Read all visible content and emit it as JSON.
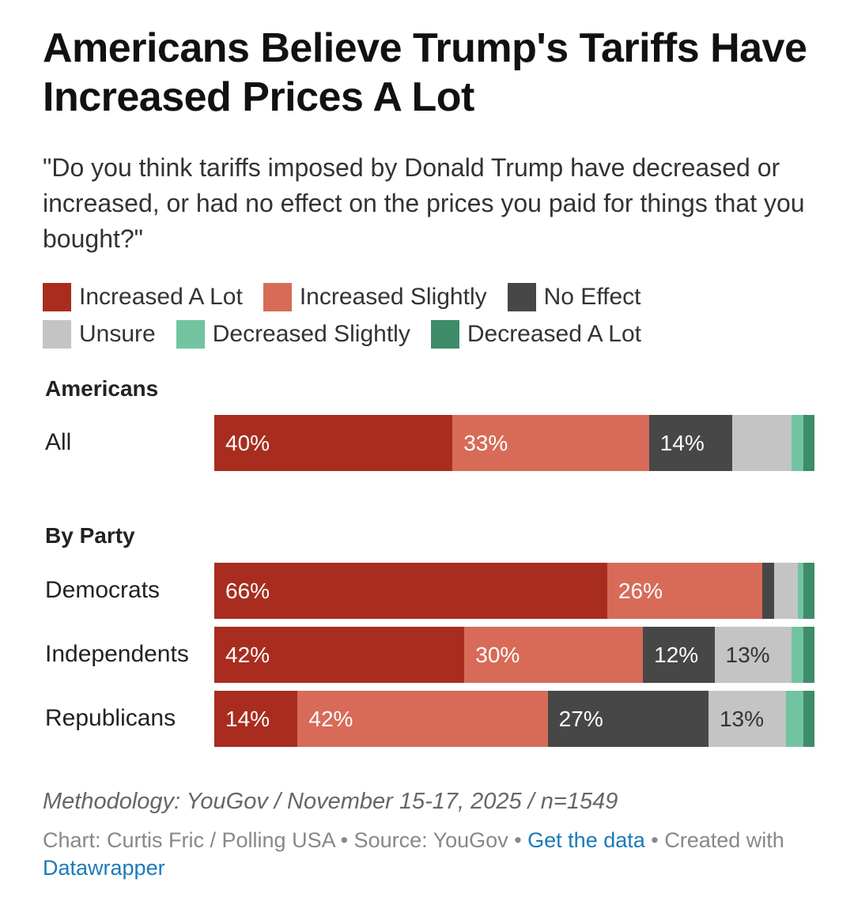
{
  "title": "Americans Believe Trump's Tariffs Have Increased Prices A Lot",
  "subtitle": "\"Do you think tariffs imposed by Donald Trump have decreased or increased, or had no effect on the prices you paid for things that you bought?\"",
  "legend": [
    {
      "label": "Increased A Lot",
      "color": "#a82d1e"
    },
    {
      "label": "Increased Slightly",
      "color": "#d76b58"
    },
    {
      "label": "No Effect",
      "color": "#474747"
    },
    {
      "label": "Unsure",
      "color": "#c4c4c4"
    },
    {
      "label": "Decreased Slightly",
      "color": "#72c4a1"
    },
    {
      "label": "Decreased A Lot",
      "color": "#3e8c69"
    }
  ],
  "sections": {
    "americans": "Americans",
    "by_party": "By Party"
  },
  "chart_data": {
    "type": "bar",
    "orientation": "horizontal-stacked-100",
    "title": "Americans Believe Trump's Tariffs Have Increased Prices A Lot",
    "categories": [
      "All",
      "Democrats",
      "Independents",
      "Republicans"
    ],
    "groups": [
      {
        "name": "Americans",
        "rows": [
          "All"
        ]
      },
      {
        "name": "By Party",
        "rows": [
          "Democrats",
          "Independents",
          "Republicans"
        ]
      }
    ],
    "series": [
      {
        "name": "Increased A Lot",
        "color": "#a82d1e",
        "values": [
          40,
          66,
          42,
          14
        ]
      },
      {
        "name": "Increased Slightly",
        "color": "#d76b58",
        "values": [
          33,
          26,
          30,
          42
        ]
      },
      {
        "name": "No Effect",
        "color": "#474747",
        "values": [
          14,
          2,
          12,
          27
        ]
      },
      {
        "name": "Unsure",
        "color": "#c4c4c4",
        "values": [
          10,
          4,
          13,
          13
        ]
      },
      {
        "name": "Decreased Slightly",
        "color": "#72c4a1",
        "values": [
          2,
          1,
          2,
          3
        ]
      },
      {
        "name": "Decreased A Lot",
        "color": "#3e8c69",
        "values": [
          1,
          1,
          1,
          1
        ]
      }
    ],
    "shown_labels": [
      [
        "40%",
        "33%",
        "14%",
        "",
        "",
        ""
      ],
      [
        "66%",
        "26%",
        "",
        "",
        "",
        ""
      ],
      [
        "42%",
        "30%",
        "12%",
        "13%",
        "",
        ""
      ],
      [
        "14%",
        "42%",
        "27%",
        "13%",
        "",
        ""
      ]
    ],
    "xlim": [
      0,
      100
    ]
  },
  "footer": {
    "methodology": "Methodology: YouGov / November 15-17, 2025 / n=1549",
    "credits_prefix": "Chart: Curtis Fric / Polling USA • Source: YouGov • ",
    "get_data": "Get the data",
    "created_with": " • Created with ",
    "datawrapper": "Datawrapper"
  }
}
